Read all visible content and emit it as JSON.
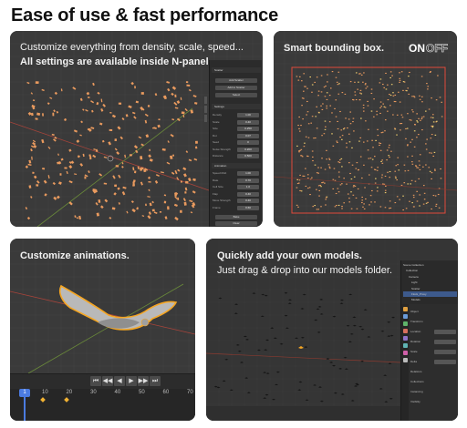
{
  "headline": "Ease of use & fast performance",
  "cards": {
    "density": {
      "line1": "Customize everything from density, scale, speed...",
      "line2": "All settings are available inside N-panel.",
      "npanel": {
        "header_top": "Scatter",
        "buttons": [
          "Add Scatter",
          "Add to Scatter",
          "Select"
        ],
        "section": "Settings",
        "rows": [
          {
            "label": "Density",
            "value": "1.00"
          },
          {
            "label": "Scale",
            "value": "0.40"
          },
          {
            "label": "Size",
            "value": "0.250"
          },
          {
            "label": "Rot",
            "value": "0.07"
          },
          {
            "label": "Seed",
            "value": "0"
          },
          {
            "label": "Noise Strength",
            "value": "0.200"
          },
          {
            "label": "Distance",
            "value": "0.500"
          }
        ],
        "section2": "Animation",
        "rows2": [
          {
            "label": "Speed Mult",
            "value": "1.00"
          },
          {
            "label": "Rate",
            "value": "0.70"
          },
          {
            "label": "Cell Size",
            "value": "1.0"
          },
          {
            "label": "Flap",
            "value": "0.40"
          },
          {
            "label": "Move Strength",
            "value": "0.40"
          },
          {
            "label": "Frame",
            "value": "0.60"
          }
        ],
        "bottom_btn": "Bake",
        "bottom_btn2": "Clear"
      }
    },
    "bbox": {
      "title": "Smart bounding box.",
      "toggle_on": "ON",
      "toggle_off": "OFF"
    },
    "anim": {
      "title": "Customize animations.",
      "current_frame": "1",
      "ticks": [
        "10",
        "20",
        "30",
        "40",
        "50",
        "60",
        "70"
      ],
      "controls": [
        "⏮",
        "◀◀",
        "◀",
        "▶",
        "▶▶",
        "⏭"
      ]
    },
    "models": {
      "line1": "Quickly add your own models.",
      "line2": "Just drag & drop into our models folder.",
      "outliner": [
        "Scene Collection",
        "Collection",
        "Camera",
        "Light",
        "Scatter",
        "Flock_Proxy",
        "Models"
      ],
      "props": [
        "Object",
        "Transform",
        "Location",
        "Rotation",
        "Scale",
        "Delta",
        "Relations",
        "Collections",
        "Instancing",
        "Visibility"
      ]
    }
  },
  "colors": {
    "viewport": "#3a3a3a",
    "particle": "#e99a5e",
    "bbox_line": "#e0493b",
    "selection_orange": "#f5a623",
    "accent_blue": "#4b7be0"
  }
}
